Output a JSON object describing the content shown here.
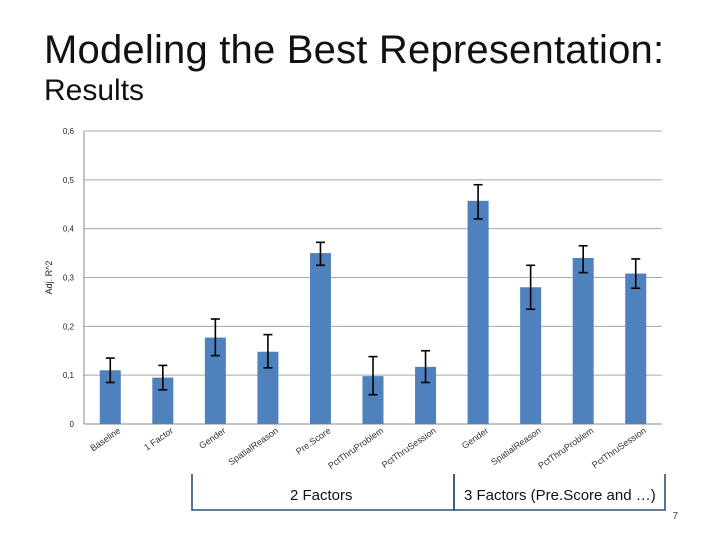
{
  "slide": {
    "title": "Modeling the Best Representation:",
    "subtitle": "Results",
    "page_number": "7"
  },
  "groups": {
    "two_factors": "2 Factors",
    "three_factors": "3 Factors (Pre.Score and …)"
  },
  "colors": {
    "bar": "#4f81bd",
    "error_bar": "#000000",
    "grid": "#a6a6a6",
    "bracket": "#2f4e7a"
  },
  "chart_data": {
    "type": "bar",
    "ylabel": "Adj. R^2",
    "ylim": [
      0,
      0.6
    ],
    "yticks": [
      "0",
      "0,1",
      "0,2",
      "0,3",
      "0,4",
      "0,5",
      "0,6"
    ],
    "ytick_values": [
      0,
      0.1,
      0.2,
      0.3,
      0.4,
      0.5,
      0.6
    ],
    "grid": true,
    "categories": [
      "Baseline",
      "1 Factor",
      "Gender",
      "SpatialReason",
      "Pre.Score",
      "PctThruProblem",
      "PctThruSession",
      "Gender",
      "SpatialReason",
      "PctThruProblem",
      "PctThruSession"
    ],
    "values": [
      0.11,
      0.095,
      0.177,
      0.148,
      0.35,
      0.098,
      0.117,
      0.457,
      0.28,
      0.34,
      0.308
    ],
    "error_low": [
      0.085,
      0.07,
      0.14,
      0.115,
      0.325,
      0.06,
      0.085,
      0.42,
      0.235,
      0.31,
      0.278
    ],
    "error_high": [
      0.135,
      0.12,
      0.215,
      0.183,
      0.372,
      0.138,
      0.15,
      0.49,
      0.325,
      0.365,
      0.338
    ]
  }
}
